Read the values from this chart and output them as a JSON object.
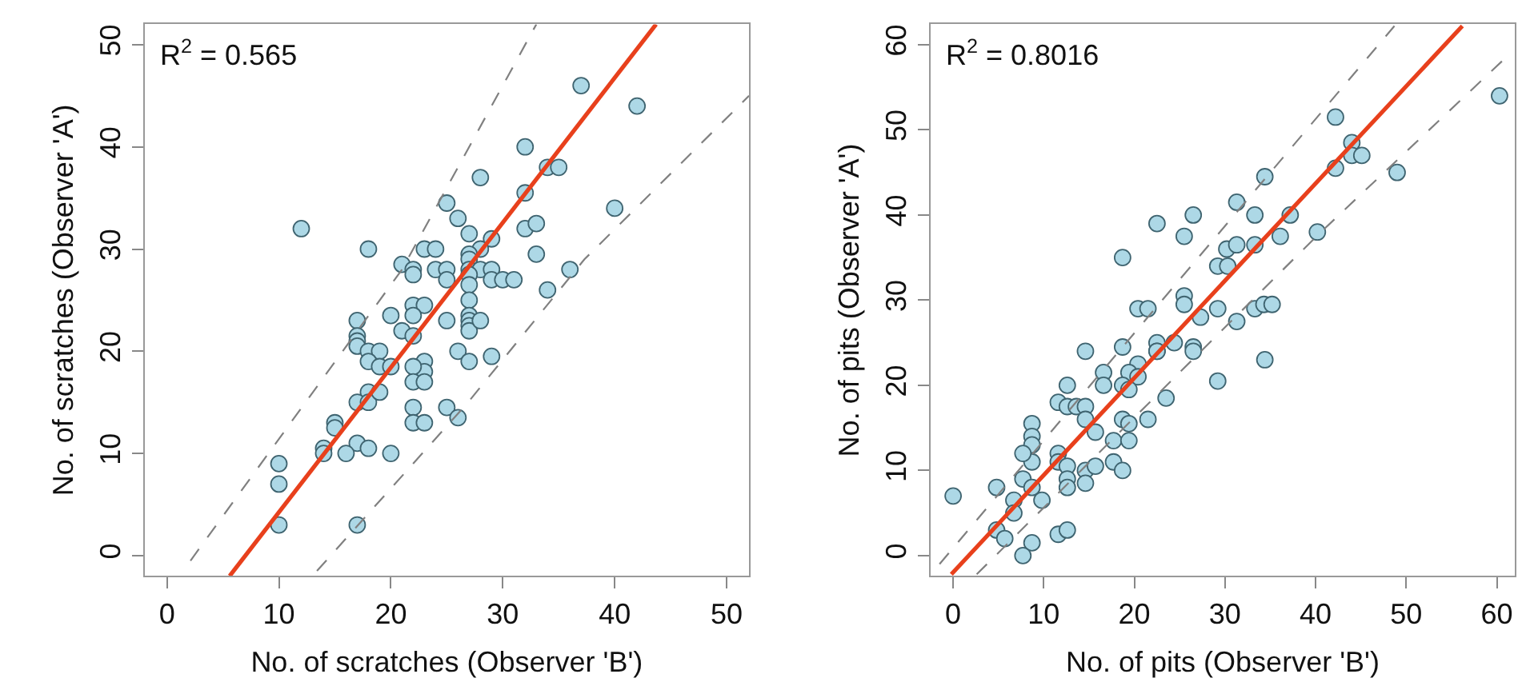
{
  "chart_data": [
    {
      "type": "scatter",
      "xlabel": "No. of scratches (Observer 'B')",
      "ylabel": "No. of scratches (Observer 'A')",
      "xlim": [
        -2,
        52
      ],
      "ylim": [
        -2,
        52
      ],
      "xticks": [
        0,
        10,
        20,
        30,
        40,
        50
      ],
      "yticks": [
        0,
        10,
        20,
        30,
        40,
        50
      ],
      "annotations": [
        "R$^{2}$ = 0.565"
      ],
      "series": [
        {
          "type": "scatter",
          "marker": "circle",
          "color": "#add8e6",
          "x": [
            37,
            42,
            32,
            28,
            34,
            35,
            32,
            25,
            26,
            40,
            12,
            32,
            33,
            27,
            29,
            18,
            23,
            24,
            28,
            27,
            27,
            33,
            21,
            22,
            22,
            24,
            25,
            25,
            27,
            28,
            29,
            29,
            30,
            31,
            27,
            27,
            36,
            34,
            27,
            22,
            23,
            22,
            20,
            17,
            25,
            27,
            27,
            27,
            27,
            28,
            21,
            17,
            17,
            17,
            22,
            18,
            19,
            18,
            19,
            20,
            23,
            23,
            22,
            26,
            27,
            29,
            22,
            23,
            18,
            17,
            18,
            19,
            22,
            25,
            26,
            15,
            15,
            22,
            23,
            14,
            14,
            17,
            16,
            18,
            20,
            10,
            10,
            10,
            17
          ],
          "values": [
            46,
            44,
            40,
            37,
            38,
            38,
            35.5,
            34.5,
            33,
            34,
            32,
            32,
            32.5,
            31.5,
            31,
            30,
            30,
            30,
            30,
            29.5,
            29,
            29.5,
            28.5,
            28,
            27.5,
            28,
            28,
            27,
            28,
            28,
            28,
            27,
            27,
            27,
            27.5,
            26.5,
            28,
            26,
            25,
            24.5,
            24.5,
            23.5,
            23.5,
            23,
            23,
            23.5,
            23,
            22.5,
            22,
            23,
            22,
            21.5,
            21,
            20.5,
            21.5,
            20,
            20,
            19,
            18.5,
            18.5,
            19,
            18,
            18.5,
            20,
            19,
            19.5,
            17,
            17,
            16,
            15,
            15,
            16,
            14.5,
            14.5,
            13.5,
            13,
            12.5,
            13,
            13,
            10.5,
            10,
            11,
            10,
            10.5,
            10,
            9,
            7,
            3,
            3
          ]
        },
        {
          "type": "line",
          "marker": "none",
          "line_style": "solid",
          "color": "#e8401c",
          "x": [
            5.6,
            43.7
          ],
          "values": [
            -2,
            52
          ]
        },
        {
          "type": "line",
          "marker": "none",
          "line_style": "dashed",
          "color": "#808080",
          "x": [
            2.1,
            21,
            33
          ],
          "values": [
            -0.5,
            28,
            52
          ]
        },
        {
          "type": "line",
          "marker": "none",
          "line_style": "dashed",
          "color": "#808080",
          "x": [
            13.4,
            26.9,
            37.3,
            52
          ],
          "values": [
            -1.5,
            15,
            29,
            45
          ]
        }
      ]
    },
    {
      "type": "scatter",
      "xlabel": "No. of pits (Observer 'B')",
      "ylabel": "No. of pits (Observer 'A')",
      "xlim": [
        -2.5,
        62
      ],
      "ylim": [
        -2.4,
        62.4
      ],
      "xticks": [
        0,
        10,
        20,
        30,
        40,
        50,
        60
      ],
      "yticks": [
        0,
        10,
        20,
        30,
        40,
        50,
        60
      ],
      "annotations": [
        "R$^{2}$ = 0.8016"
      ],
      "series": [
        {
          "type": "scatter",
          "marker": "circle",
          "color": "#add8e6",
          "x": [
            60.3,
            42.2,
            44,
            44,
            45.1,
            42.2,
            49,
            34.4,
            31.3,
            22.5,
            26.5,
            33.3,
            37.2,
            25.5,
            40.2,
            36.1,
            18.7,
            30.2,
            31.3,
            33.3,
            29.2,
            30.3,
            25.5,
            25.5,
            20.4,
            21.5,
            29.2,
            33.3,
            34.3,
            35.2,
            27.3,
            31.3,
            14.6,
            18.7,
            22.5,
            22.5,
            22.5,
            24.4,
            26.5,
            26.5,
            20.4,
            16.6,
            19.4,
            20.4,
            12.6,
            16.6,
            18.7,
            19.4,
            34.4,
            29.2,
            11.6,
            12.6,
            13.6,
            14.6,
            14.6,
            15.7,
            18.7,
            19.4,
            21.5,
            23.5,
            17.7,
            19.4,
            17.7,
            18.7,
            8.7,
            8.7,
            8.7,
            8.7,
            7.7,
            11.6,
            11.6,
            12.6,
            12.6,
            12.6,
            14.6,
            14.6,
            15.7,
            7.7,
            4.8,
            8.7,
            6.7,
            9.8,
            6.7,
            4.8,
            5.7,
            8.7,
            11.6,
            12.6,
            7.7,
            0
          ],
          "values": [
            54,
            51.5,
            48.5,
            47,
            47,
            45.5,
            45,
            44.5,
            41.5,
            39,
            40,
            40,
            40,
            37.5,
            38,
            37.5,
            35,
            36,
            36.5,
            36.5,
            34,
            34,
            30.5,
            29.5,
            29,
            29,
            29,
            29,
            29.5,
            29.5,
            28,
            27.5,
            24,
            24.5,
            25,
            24,
            24,
            25,
            24.5,
            24,
            22.5,
            21.5,
            21.5,
            21,
            20,
            20,
            20,
            19.5,
            23,
            20.5,
            18,
            17.5,
            17.5,
            17.5,
            16,
            14.5,
            16,
            15.5,
            16,
            18.5,
            13.5,
            13.5,
            11,
            10,
            15.5,
            14,
            13,
            11,
            12,
            12,
            11,
            10.5,
            9,
            8,
            10,
            8.5,
            10.5,
            9,
            8,
            8,
            6.5,
            6.5,
            5,
            3,
            2,
            1.5,
            2.5,
            3,
            0,
            7
          ]
        },
        {
          "type": "line",
          "marker": "none",
          "line_style": "solid",
          "color": "#e8401c",
          "x": [
            -0.2,
            56.2
          ],
          "values": [
            -2.2,
            62.2
          ]
        },
        {
          "type": "line",
          "marker": "none",
          "line_style": "dashed",
          "color": "#808080",
          "x": [
            -1.5,
            18.3,
            48.7
          ],
          "values": [
            -1,
            24,
            62.2
          ]
        },
        {
          "type": "line",
          "marker": "none",
          "line_style": "dashed",
          "color": "#808080",
          "x": [
            2.6,
            40.2,
            61
          ],
          "values": [
            -2.2,
            37.6,
            58.5
          ]
        }
      ]
    }
  ]
}
